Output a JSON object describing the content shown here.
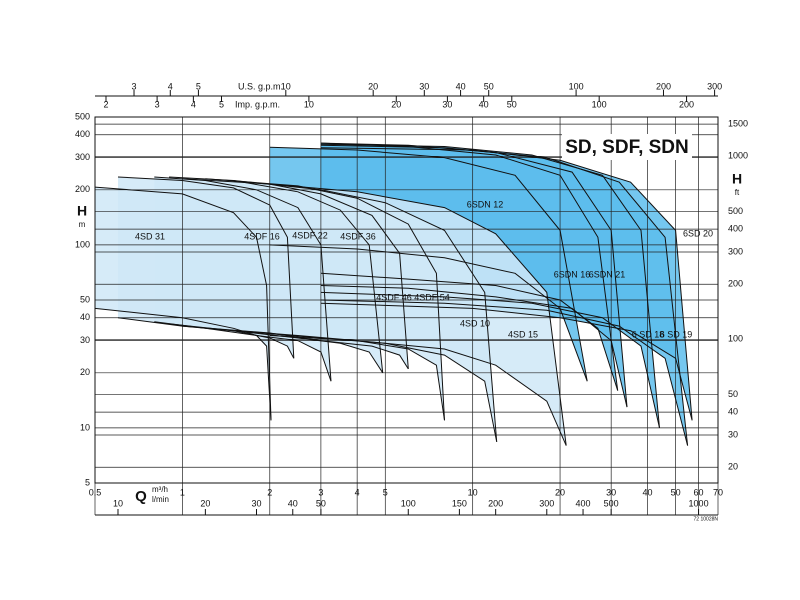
{
  "chart_data": {
    "type": "line",
    "title": "SD, SDF, SDN",
    "x_label": "Q",
    "x_unit": "m³/h",
    "x2_unit": "l/min",
    "y_label": "H",
    "y_unit": "m",
    "y2_label": "H",
    "y2_unit": "ft",
    "log_x": true,
    "log_y": true,
    "grid": true,
    "xlim": [
      0.5,
      70
    ],
    "xticks": [
      0.5,
      1,
      2,
      3,
      4,
      5,
      10,
      20,
      30,
      40,
      50,
      60,
      70
    ],
    "ylim": [
      5,
      500
    ],
    "yticks": [
      5,
      10,
      20,
      30,
      40,
      50,
      100,
      200,
      300,
      400,
      500
    ],
    "y2lim": [
      16.404,
      1640.4
    ],
    "y2ticks": [
      20,
      30,
      40,
      50,
      100,
      200,
      300,
      400,
      500,
      1000,
      1500
    ],
    "top_axes": [
      {
        "label": "U.S. g.p.m.",
        "lim": [
          2.2015,
          308.21
        ],
        "ticks": [
          3,
          4,
          5,
          10,
          20,
          30,
          40,
          50,
          100,
          200,
          300
        ]
      },
      {
        "label": "Imp. g.p.m.",
        "lim": [
          1.8331,
          256.63
        ],
        "ticks": [
          2,
          3,
          4,
          5,
          10,
          20,
          30,
          40,
          50,
          100,
          200
        ]
      }
    ],
    "bottom_axis2": {
      "lim": [
        8.3333,
        1166.7
      ],
      "ticks": [
        10,
        20,
        30,
        40,
        50,
        100,
        150,
        200,
        300,
        400,
        500,
        1000
      ]
    },
    "note": "72 10028N",
    "series": [
      {
        "name": "4SD 31",
        "color": "#cfe8f7",
        "x": [
          0.5,
          1,
          1.5,
          1.8,
          1.95,
          2.02
        ],
        "values": [
          207,
          190,
          150,
          110,
          60,
          11
        ],
        "min_values": [
          45,
          40,
          35,
          32,
          28,
          11
        ]
      },
      {
        "name": "4SDF 16",
        "color": "#cfe8f7",
        "x": [
          0.6,
          1,
          1.5,
          2,
          2.3,
          2.42
        ],
        "values": [
          235,
          225,
          205,
          165,
          110,
          24
        ],
        "min_values": [
          40,
          36,
          34,
          31,
          28,
          24
        ]
      },
      {
        "name": "4SDF 22",
        "color": "#cfe8f7",
        "x": [
          0.8,
          1.2,
          1.8,
          2.5,
          3.0,
          3.25
        ],
        "values": [
          235,
          225,
          200,
          160,
          100,
          18
        ],
        "min_values": [
          38,
          35,
          32,
          30,
          26,
          18
        ]
      },
      {
        "name": "4SDF 36",
        "color": "#cfe8f7",
        "x": [
          0.9,
          1.5,
          2.5,
          3.5,
          4.4,
          4.9
        ],
        "values": [
          235,
          225,
          195,
          155,
          100,
          20
        ],
        "min_values": [
          37,
          34,
          31,
          29,
          26,
          20
        ]
      },
      {
        "name": "4SDF 46",
        "color": "#cfe8f7",
        "x": [
          1,
          2,
          3,
          4.5,
          5.6,
          6.0
        ],
        "values": [
          230,
          215,
          190,
          145,
          90,
          21
        ],
        "min_values": [
          36,
          33,
          30,
          28,
          25,
          21
        ]
      },
      {
        "name": "4SDF 54",
        "color": "#cfe8f7",
        "x": [
          1.2,
          2.5,
          4,
          6,
          7.5,
          8.0
        ],
        "values": [
          230,
          210,
          180,
          130,
          70,
          11
        ],
        "min_values": [
          35,
          32,
          30,
          27,
          22,
          11
        ]
      },
      {
        "name": "4SD 10",
        "color": "#cfe8f7",
        "x": [
          1.5,
          3,
          5,
          8,
          11,
          12.1
        ],
        "values": [
          225,
          200,
          170,
          120,
          55,
          8.4
        ],
        "min_values": [
          34,
          31,
          29,
          25,
          18,
          8.4
        ]
      },
      {
        "name": "4SD 15",
        "color": "#cfe8f7",
        "x": [
          2,
          4,
          8,
          12,
          18,
          21
        ],
        "values": [
          215,
          195,
          160,
          115,
          55,
          8
        ],
        "min_values": [
          32,
          30,
          27,
          22,
          14,
          8
        ]
      },
      {
        "name": "6SDN 12",
        "color": "#5dbdec",
        "x": [
          2,
          4,
          8,
          14,
          20,
          24.8
        ],
        "values": [
          342,
          330,
          300,
          240,
          120,
          18
        ],
        "min_values": [
          100,
          95,
          85,
          70,
          45,
          18
        ]
      },
      {
        "name": "6SDN 16",
        "color": "#5dbdec",
        "x": [
          3,
          6,
          12,
          20,
          27,
          31.6
        ],
        "values": [
          360,
          345,
          310,
          240,
          110,
          16
        ],
        "min_values": [
          70,
          65,
          60,
          50,
          35,
          16
        ]
      },
      {
        "name": "6SDN 21",
        "color": "#5dbdec",
        "x": [
          3,
          6,
          12,
          22,
          30,
          34
        ],
        "values": [
          360,
          350,
          320,
          250,
          120,
          13
        ],
        "min_values": [
          60,
          58,
          52,
          45,
          30,
          13
        ]
      },
      {
        "name": "6 SD 18",
        "color": "#5dbdec",
        "x": [
          3,
          8,
          16,
          28,
          38,
          44
        ],
        "values": [
          355,
          345,
          310,
          240,
          120,
          10
        ],
        "min_values": [
          55,
          52,
          48,
          40,
          28,
          10
        ]
      },
      {
        "name": "6 SD 19",
        "color": "#5dbdec",
        "x": [
          3,
          8,
          18,
          32,
          46,
          55
        ],
        "values": [
          350,
          340,
          300,
          220,
          110,
          8
        ],
        "min_values": [
          50,
          48,
          44,
          36,
          24,
          8
        ]
      },
      {
        "name": "6SD 20",
        "color": "#5dbdec",
        "x": [
          3,
          10,
          20,
          35,
          50,
          57
        ],
        "values": [
          340,
          330,
          290,
          220,
          120,
          11
        ],
        "min_values": [
          48,
          45,
          40,
          34,
          24,
          11
        ]
      }
    ]
  }
}
